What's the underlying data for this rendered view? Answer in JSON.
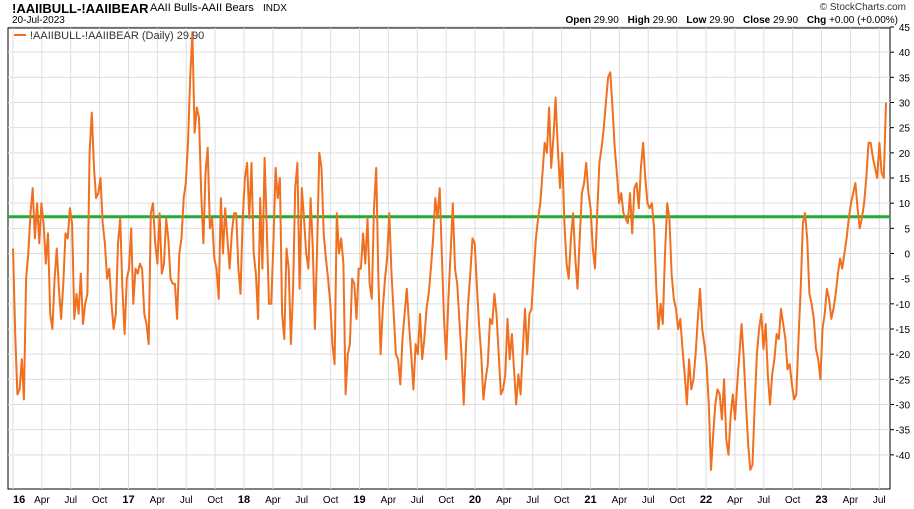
{
  "header": {
    "symbol": "!AAIIBULL-!AAIIBEAR",
    "description": "AAII Bulls-AAII Bears",
    "exchange": "INDX",
    "date": "20-Jul-2023",
    "brand": "© StockCharts.com",
    "open_label": "Open",
    "open": "29.90",
    "high_label": "High",
    "high": "29.90",
    "low_label": "Low",
    "low": "29.90",
    "close_label": "Close",
    "close": "29.90",
    "chg_label": "Chg",
    "chg": "+0.00 (+0.00%)"
  },
  "chart_data": {
    "type": "line",
    "legend": "!AAIIBULL-!AAIIBEAR (Daily) 29.90",
    "ylim": [
      -45,
      45
    ],
    "yticks": [
      45,
      40,
      35,
      30,
      25,
      20,
      15,
      10,
      5,
      0,
      -5,
      -10,
      -15,
      -20,
      -25,
      -30,
      -35,
      -40
    ],
    "x_range": [
      "2016-01",
      "2023-07"
    ],
    "xticks": [
      {
        "label": "16",
        "bold": true,
        "t": 0
      },
      {
        "label": "Apr",
        "t": 3
      },
      {
        "label": "Jul",
        "t": 6
      },
      {
        "label": "Oct",
        "t": 9
      },
      {
        "label": "17",
        "bold": true,
        "t": 12
      },
      {
        "label": "Apr",
        "t": 15
      },
      {
        "label": "Jul",
        "t": 18
      },
      {
        "label": "Oct",
        "t": 21
      },
      {
        "label": "18",
        "bold": true,
        "t": 24
      },
      {
        "label": "Apr",
        "t": 27
      },
      {
        "label": "Jul",
        "t": 30
      },
      {
        "label": "Oct",
        "t": 33
      },
      {
        "label": "19",
        "bold": true,
        "t": 36
      },
      {
        "label": "Apr",
        "t": 39
      },
      {
        "label": "Jul",
        "t": 42
      },
      {
        "label": "Oct",
        "t": 45
      },
      {
        "label": "20",
        "bold": true,
        "t": 48
      },
      {
        "label": "Apr",
        "t": 51
      },
      {
        "label": "Jul",
        "t": 54
      },
      {
        "label": "Oct",
        "t": 57
      },
      {
        "label": "21",
        "bold": true,
        "t": 60
      },
      {
        "label": "Apr",
        "t": 63
      },
      {
        "label": "Jul",
        "t": 66
      },
      {
        "label": "Oct",
        "t": 69
      },
      {
        "label": "22",
        "bold": true,
        "t": 72
      },
      {
        "label": "Apr",
        "t": 75
      },
      {
        "label": "Jul",
        "t": 78
      },
      {
        "label": "Oct",
        "t": 81
      },
      {
        "label": "23",
        "bold": true,
        "t": 84
      },
      {
        "label": "Apr",
        "t": 87
      },
      {
        "label": "Jul",
        "t": 90
      }
    ],
    "series": [
      {
        "name": "!AAIIBULL-!AAIIBEAR (Daily)",
        "color": "#F07020",
        "t_end": 90.7,
        "values": [
          1,
          -16,
          -28,
          -27,
          -21,
          -29,
          -5,
          0,
          8,
          13,
          3,
          10,
          2,
          10,
          6,
          -2,
          4,
          -12,
          -15,
          -5,
          1,
          -7,
          -13,
          -6,
          4,
          3,
          9,
          6,
          -13,
          -8,
          -12,
          -4,
          -14,
          -10,
          -8,
          20,
          28,
          17,
          11,
          12,
          15,
          6,
          2,
          -5,
          -3,
          -10,
          -15,
          -12,
          2,
          7,
          -7,
          -16,
          -5,
          -3,
          5,
          -10,
          -3,
          -4,
          -2,
          -3,
          -12,
          -14,
          -18,
          8,
          10,
          2,
          -2,
          8,
          -4,
          -2,
          7,
          3,
          -5,
          -6,
          -6,
          -13,
          0,
          3,
          11,
          14,
          22,
          35,
          44,
          24,
          29,
          27,
          12,
          2,
          16,
          21,
          5,
          7,
          -1,
          -3,
          -9,
          11,
          0,
          9,
          3,
          -3,
          4,
          8,
          8,
          -3,
          -8,
          7,
          15,
          18,
          7,
          18,
          0,
          -4,
          -13,
          11,
          -3,
          19,
          5,
          -10,
          -10,
          2,
          17,
          11,
          15,
          -12,
          -17,
          1,
          -3,
          -18,
          -7,
          13,
          18,
          -7,
          13,
          7,
          0,
          -3,
          11,
          1,
          -15,
          1,
          20,
          17,
          4,
          -1,
          -5,
          -10,
          -18,
          -22,
          8,
          0,
          3,
          -2,
          -28,
          -20,
          -18,
          -5,
          -6,
          -13,
          -3,
          -3,
          4,
          -2,
          7,
          -6,
          -9,
          9,
          17,
          -5,
          -20,
          -11,
          -5,
          -1,
          8,
          -4,
          -12,
          -20,
          -21,
          -26,
          -17,
          -12,
          -7,
          -14,
          -20,
          -27,
          -18,
          -20,
          -12,
          -21,
          -17,
          -11,
          -8,
          -3,
          3,
          11,
          7,
          13,
          0,
          -13,
          -21,
          -9,
          0,
          10,
          -3,
          -6,
          -13,
          -20,
          -30,
          -19,
          -10,
          -4,
          3,
          2,
          -6,
          -14,
          -20,
          -29,
          -25,
          -22,
          -13,
          -14,
          -8,
          -12,
          -20,
          -28,
          -27,
          -24,
          -13,
          -21,
          -16,
          -23,
          -30,
          -24,
          -28,
          -19,
          -11,
          -20,
          -12,
          -11,
          -4,
          3,
          7,
          10,
          16,
          22,
          20,
          29,
          17,
          23,
          31,
          21,
          13,
          20,
          6,
          -2,
          -5,
          3,
          8,
          -1,
          -7,
          3,
          12,
          14,
          18,
          12,
          9,
          1,
          -3,
          8,
          18,
          21,
          25,
          30,
          35,
          36,
          29,
          21,
          16,
          10,
          12,
          8,
          7,
          6,
          12,
          4,
          13,
          14,
          9,
          17,
          22,
          15,
          10,
          9,
          10,
          5,
          -7,
          -15,
          -10,
          -14,
          0,
          10,
          7,
          -4,
          -9,
          -11,
          -15,
          -13,
          -19,
          -24,
          -30,
          -21,
          -27,
          -25,
          -20,
          -13,
          -7,
          -15,
          -18,
          -22,
          -30,
          -43,
          -36,
          -30,
          -27,
          -28,
          -33,
          -25,
          -37,
          -40,
          -32,
          -28,
          -33,
          -26,
          -20,
          -14,
          -21,
          -30,
          -38,
          -43,
          -42,
          -30,
          -20,
          -15,
          -12,
          -19,
          -14,
          -24,
          -30,
          -24,
          -21,
          -16,
          -17,
          -11,
          -14,
          -17,
          -23,
          -22,
          -26,
          -29,
          -28,
          -17,
          -7,
          6,
          8,
          3,
          -8,
          -10,
          -13,
          -19,
          -21,
          -25,
          -15,
          -12,
          -7,
          -9,
          -13,
          -11,
          -8,
          -4,
          -1,
          -3,
          0,
          3,
          7,
          10,
          12,
          14,
          9,
          5,
          7,
          10,
          15,
          22,
          22,
          19,
          17,
          15,
          22,
          16,
          15,
          30
        ]
      }
    ],
    "reference_line": {
      "value": 7.3,
      "color": "#22AA33"
    },
    "grid": true
  }
}
